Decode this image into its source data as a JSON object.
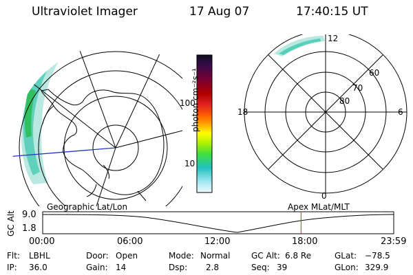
{
  "header": {
    "instrument": "Ultraviolet Imager",
    "date": "17 Aug 07",
    "time": "17:40:15 UT"
  },
  "geo_map": {
    "projection_label": "Geographic Lat/Lon"
  },
  "colorbar": {
    "unit_label": "photon cm⁻²s⁻¹",
    "tick_labels": [
      "100",
      "10"
    ],
    "colors": [
      "#101020",
      "#3a0a4a",
      "#7a0030",
      "#b00000",
      "#e02020",
      "#ff6000",
      "#ffa000",
      "#ffff00",
      "#b0f000",
      "#40e040",
      "#20c0c0",
      "#a0e8f0",
      "#f0f8ff"
    ]
  },
  "polar_plot": {
    "coordinate_label": "Apex MLat/MLT",
    "mlt_labels": {
      "top": "12",
      "left": "18",
      "right": "6",
      "bottom": "0"
    },
    "lat_labels": [
      "60",
      "70",
      "80"
    ]
  },
  "altitude_plot": {
    "axis_label": "GC Alt",
    "y_ticks": [
      "9.0",
      "1.8"
    ],
    "x_ticks": [
      "00:00",
      "06:00",
      "12:00",
      "18:00",
      "23:59"
    ],
    "current_time_fraction": 0.736
  },
  "info": {
    "filter_label": "Flt:",
    "filter_value": "LBHL",
    "ip_label": "IP:",
    "ip_value": "36.0",
    "door_label": "Door:",
    "door_value": "Open",
    "gain_label": "Gain:",
    "gain_value": "14",
    "mode_label": "Mode:",
    "mode_value": "Normal",
    "dsp_label": "Dsp:",
    "dsp_value": "2.8",
    "gcalt_label": "GC Alt:",
    "gcalt_value": "6.8 Re",
    "seq_label": "Seq:",
    "seq_value": "39",
    "glat_label": "GLat:",
    "glat_value": "−78.5",
    "glon_label": "GLon:",
    "glon_value": "329.9"
  }
}
